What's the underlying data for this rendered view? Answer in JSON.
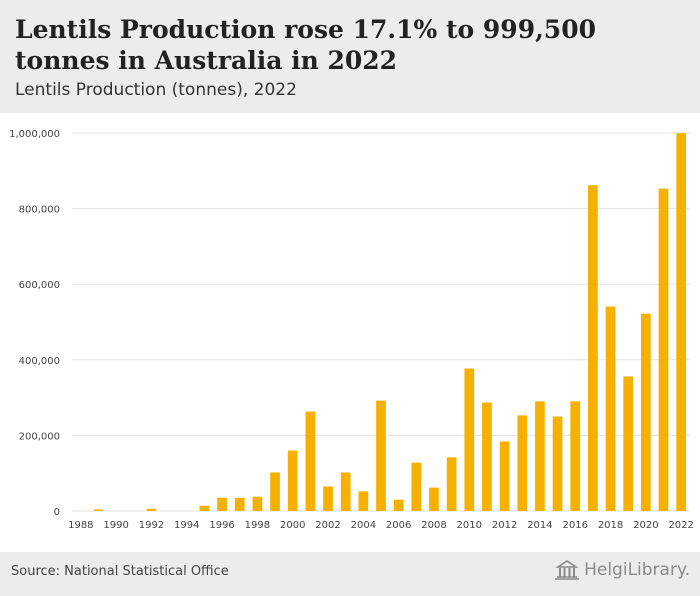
{
  "header": {
    "title": "Lentils Production rose 17.1% to 999,500 tonnes in Australia in 2022",
    "subtitle": "Lentils Production (tonnes), 2022"
  },
  "footer": {
    "source": "Source: National Statistical Office",
    "logo_text": "HelgiLibrary."
  },
  "colors": {
    "bar": "#f6b100",
    "grid": "#e3e3e3",
    "header_bg": "#ececec"
  },
  "chart_data": {
    "type": "bar",
    "categories": [
      "1988",
      "1989",
      "1990",
      "1991",
      "1992",
      "1993",
      "1994",
      "1995",
      "1996",
      "1997",
      "1998",
      "1999",
      "2000",
      "2001",
      "2002",
      "2003",
      "2004",
      "2005",
      "2006",
      "2007",
      "2008",
      "2009",
      "2010",
      "2011",
      "2012",
      "2013",
      "2014",
      "2015",
      "2016",
      "2017",
      "2018",
      "2019",
      "2020",
      "2021",
      "2022"
    ],
    "x_tick_labels": [
      "1988",
      "1990",
      "1992",
      "1994",
      "1996",
      "1998",
      "2000",
      "2002",
      "2004",
      "2006",
      "2008",
      "2010",
      "2012",
      "2014",
      "2016",
      "2018",
      "2020",
      "2022"
    ],
    "values": [
      0,
      4000,
      0,
      0,
      6000,
      0,
      0,
      14000,
      35000,
      35000,
      38000,
      102000,
      160000,
      263000,
      65000,
      102000,
      52000,
      292000,
      30000,
      128000,
      62000,
      142000,
      377000,
      287000,
      184000,
      253000,
      290000,
      250000,
      290000,
      862000,
      541000,
      356000,
      522000,
      853000,
      999500
    ],
    "ylim": [
      0,
      1000000
    ],
    "y_ticks": [
      0,
      200000,
      400000,
      600000,
      800000,
      1000000
    ],
    "y_tick_labels": [
      "0",
      "200,000",
      "400,000",
      "600,000",
      "800,000",
      "1,000,000"
    ],
    "grid": true,
    "xlabel": "",
    "ylabel": ""
  }
}
